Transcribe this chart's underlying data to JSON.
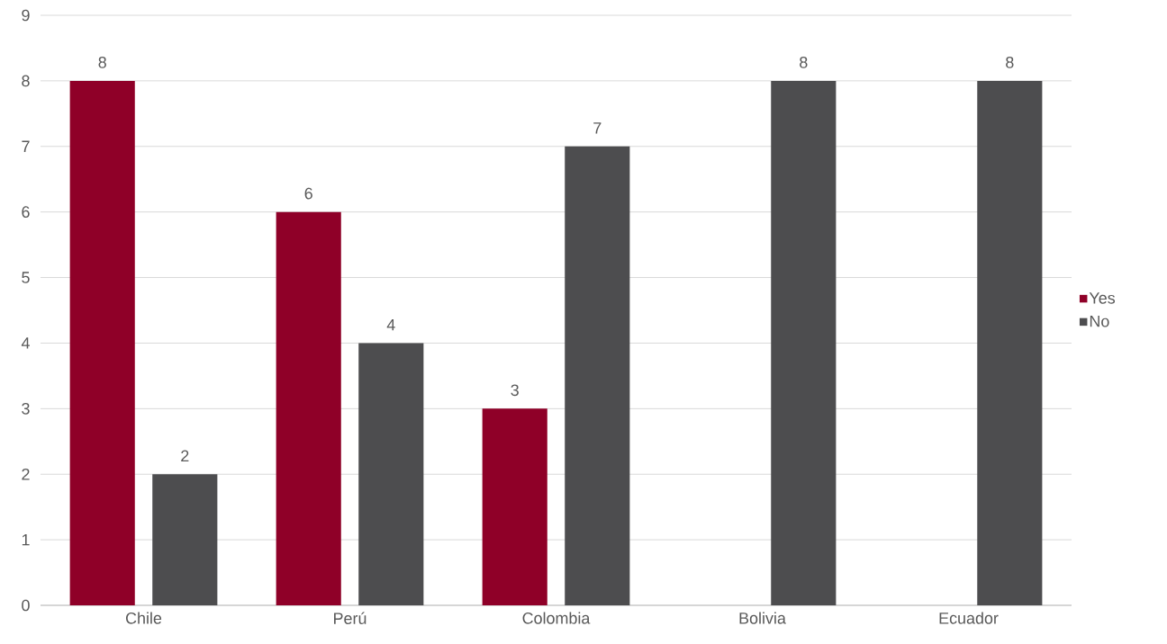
{
  "chart_data": {
    "type": "bar",
    "categories": [
      "Chile",
      "Perú",
      "Colombia",
      "Bolivia",
      "Ecuador"
    ],
    "series": [
      {
        "name": "Yes",
        "color": "#8f0028",
        "values": [
          8,
          6,
          3,
          null,
          null
        ]
      },
      {
        "name": "No",
        "color": "#4d4d4f",
        "values": [
          2,
          4,
          7,
          8,
          8
        ]
      }
    ],
    "ylim": [
      0,
      9
    ],
    "yticks": [
      0,
      1,
      2,
      3,
      4,
      5,
      6,
      7,
      8,
      9
    ],
    "grid": "y",
    "legend": "right",
    "data_labels": true
  }
}
